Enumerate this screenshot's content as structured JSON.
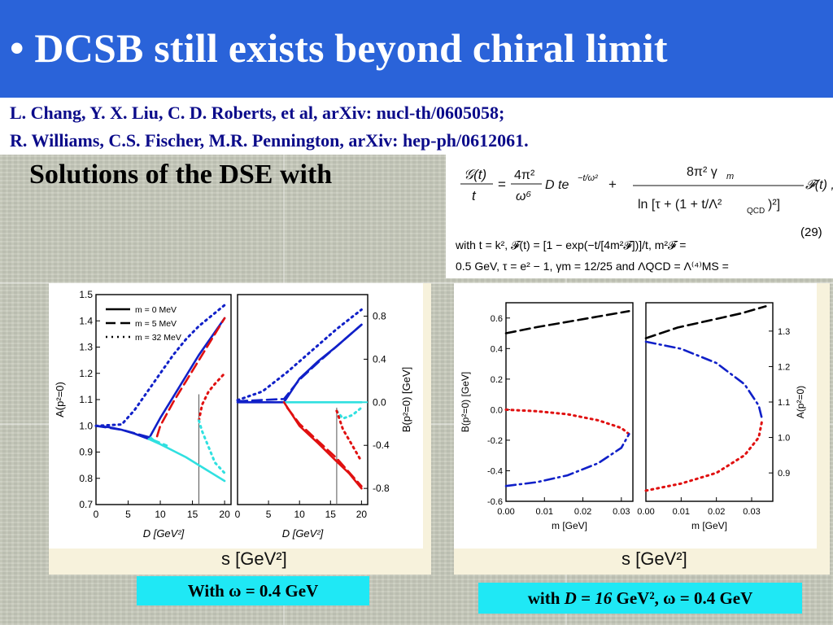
{
  "title": "• DCSB still exists beyond chiral limit",
  "references": [
    "L. Chang, Y. X. Liu, C. D. Roberts, et al,  arXiv: nucl-th/0605058;",
    "R. Williams, C.S. Fischer,  M.R. Pennington, arXiv: hep-ph/0612061."
  ],
  "subtitle": "Solutions of the DSE with",
  "formula": {
    "eq_number": "(29)",
    "line1": "with  t = k², 𝓕(t) = [1 − exp(−t/[4m²𝓕])]/t,  m²𝓕 =",
    "line2": "0.5 GeV, τ = e² − 1, γm = 12/25 and ΛQCD = Λ⁽⁴⁾MS ="
  },
  "left_panel": {
    "s_label": "s  [GeV²]",
    "caption": "With ω = 0.4 GeV"
  },
  "right_panel": {
    "s_label": "s  [GeV²]",
    "caption_prefix": "with ",
    "caption_D": "D = 16",
    "caption_suffix": " GeV², ω = 0.4 GeV"
  },
  "colors": {
    "title_bar": "#2a63d9",
    "ref_text": "#0b0b8a",
    "caption_bg": "#1fe8f5",
    "dark_blue": "#1020c8",
    "cyan": "#30e0e0",
    "red": "#e01010",
    "black": "#000000"
  },
  "chart_data": [
    {
      "type": "line",
      "id": "A_vs_D",
      "xlabel": "D [GeV²]",
      "ylabel": "A(p²=0)",
      "xlim": [
        0,
        21
      ],
      "ylim": [
        0.7,
        1.5
      ],
      "xticks": [
        0,
        5,
        10,
        15,
        20
      ],
      "yticks": [
        0.7,
        0.8,
        0.9,
        1.0,
        1.1,
        1.2,
        1.3,
        1.4,
        1.5
      ],
      "legend": {
        "placement": "top-left",
        "entries": [
          "m = 0 MeV",
          "m = 5 MeV",
          "m = 32 MeV"
        ]
      },
      "vline_x": 16,
      "series": [
        {
          "name": "m = 0 MeV",
          "color": "#1020c8",
          "style": "solid",
          "x": [
            0,
            2,
            4,
            6,
            8.2
          ],
          "y": [
            1.0,
            0.995,
            0.985,
            0.97,
            0.95
          ]
        },
        {
          "name": "m = 0 MeV",
          "color": "#1020c8",
          "style": "solid",
          "x": [
            8.2,
            10,
            12,
            14,
            16,
            18,
            20
          ],
          "y": [
            0.95,
            1.03,
            1.11,
            1.19,
            1.27,
            1.34,
            1.41
          ]
        },
        {
          "name": "m = 0 MeV",
          "color": "#30e0e0",
          "style": "solid",
          "x": [
            8.2,
            10,
            12,
            14,
            16,
            18,
            20
          ],
          "y": [
            0.95,
            0.93,
            0.905,
            0.88,
            0.85,
            0.82,
            0.79
          ]
        },
        {
          "name": "m = 5 MeV",
          "color": "#1020c8",
          "style": "dashed",
          "x": [
            0,
            4,
            8.5
          ],
          "y": [
            1.0,
            0.985,
            0.955
          ]
        },
        {
          "name": "m = 5 MeV",
          "color": "#e01010",
          "style": "dashed",
          "x": [
            9.5,
            10,
            12,
            14,
            16,
            18,
            20
          ],
          "y": [
            0.96,
            1.0,
            1.09,
            1.17,
            1.25,
            1.33,
            1.41
          ]
        },
        {
          "name": "m = 5 MeV",
          "color": "#30e0e0",
          "style": "dashed",
          "x": [
            8.5,
            9,
            10,
            11
          ],
          "y": [
            0.955,
            0.945,
            0.935,
            0.925
          ]
        },
        {
          "name": "m = 32 MeV",
          "color": "#1020c8",
          "style": "dotted",
          "x": [
            0,
            4,
            6,
            8,
            10,
            12,
            14,
            16,
            18,
            20
          ],
          "y": [
            1.0,
            1.005,
            1.06,
            1.13,
            1.2,
            1.27,
            1.33,
            1.38,
            1.42,
            1.46
          ]
        },
        {
          "name": "m = 32 MeV",
          "color": "#e01010",
          "style": "dotted",
          "x": [
            16,
            16.5,
            17.5,
            18.5,
            20
          ],
          "y": [
            1.02,
            1.08,
            1.13,
            1.16,
            1.2
          ]
        },
        {
          "name": "m = 32 MeV",
          "color": "#30e0e0",
          "style": "dotted",
          "x": [
            16,
            16.5,
            17.5,
            18.5,
            20
          ],
          "y": [
            1.02,
            0.98,
            0.92,
            0.86,
            0.82
          ]
        }
      ]
    },
    {
      "type": "line",
      "id": "B_vs_D",
      "xlabel": "D [GeV²]",
      "ylabel": "B(p²=0) [GeV]",
      "xlim": [
        0,
        21
      ],
      "ylim": [
        -0.95,
        1.0
      ],
      "xticks": [
        0,
        5,
        10,
        15,
        20
      ],
      "yticks": [
        -0.8,
        -0.4,
        0.0,
        0.4,
        0.8
      ],
      "vline_x": 16,
      "series": [
        {
          "name": "m = 0 MeV",
          "color": "#1020c8",
          "style": "solid",
          "x": [
            0,
            7.5
          ],
          "y": [
            0.0,
            0.0
          ]
        },
        {
          "name": "m = 0 MeV",
          "color": "#1020c8",
          "style": "solid",
          "x": [
            7.5,
            10,
            13,
            16,
            20
          ],
          "y": [
            0.0,
            0.22,
            0.38,
            0.52,
            0.72
          ]
        },
        {
          "name": "m = 0 MeV",
          "color": "#30e0e0",
          "style": "solid",
          "x": [
            7.5,
            20
          ],
          "y": [
            0.0,
            0.0
          ]
        },
        {
          "name": "m = 0 MeV",
          "color": "#e01010",
          "style": "solid",
          "x": [
            7.5,
            10,
            13,
            16,
            18,
            20
          ],
          "y": [
            0.0,
            -0.22,
            -0.38,
            -0.55,
            -0.66,
            -0.8
          ]
        },
        {
          "name": "m = 5 MeV",
          "color": "#1020c8",
          "style": "dashed",
          "x": [
            0,
            7.5,
            10,
            13,
            16,
            20
          ],
          "y": [
            0.01,
            0.03,
            0.21,
            0.37,
            0.52,
            0.72
          ]
        },
        {
          "name": "m = 5 MeV",
          "color": "#e01010",
          "style": "dashed",
          "x": [
            8,
            10,
            13,
            16,
            20
          ],
          "y": [
            -0.05,
            -0.2,
            -0.36,
            -0.52,
            -0.78
          ]
        },
        {
          "name": "m = 32 MeV",
          "color": "#1020c8",
          "style": "dotted",
          "x": [
            0,
            4,
            8,
            12,
            16,
            20
          ],
          "y": [
            0.02,
            0.1,
            0.28,
            0.48,
            0.68,
            0.86
          ]
        },
        {
          "name": "m = 32 MeV",
          "color": "#30e0e0",
          "style": "dotted",
          "x": [
            16,
            17,
            18.5,
            20
          ],
          "y": [
            -0.08,
            -0.15,
            -0.12,
            -0.05
          ]
        },
        {
          "name": "m = 32 MeV",
          "color": "#e01010",
          "style": "dotted",
          "x": [
            16,
            17,
            18.5,
            20
          ],
          "y": [
            -0.08,
            -0.25,
            -0.4,
            -0.55
          ]
        }
      ]
    },
    {
      "type": "line",
      "id": "B_vs_m",
      "xlabel": "m [GeV]",
      "ylabel": "B(p²=0) [GeV]",
      "xlim": [
        0.0,
        0.033
      ],
      "ylim": [
        -0.6,
        0.7
      ],
      "xticks": [
        0.0,
        0.01,
        0.02,
        0.03
      ],
      "xtick_labels": [
        "0.00",
        "0.01",
        "0.02",
        "0.03"
      ],
      "yticks": [
        -0.6,
        -0.4,
        -0.2,
        0.0,
        0.2,
        0.4,
        0.6
      ],
      "series": [
        {
          "color": "#000000",
          "style": "dashed",
          "x": [
            0.0,
            0.008,
            0.016,
            0.024,
            0.032
          ],
          "y": [
            0.5,
            0.54,
            0.575,
            0.61,
            0.645
          ]
        },
        {
          "color": "#e01010",
          "style": "dotted",
          "x": [
            0.0,
            0.008,
            0.016,
            0.024,
            0.03,
            0.032
          ],
          "y": [
            0.0,
            -0.01,
            -0.03,
            -0.07,
            -0.12,
            -0.16
          ]
        },
        {
          "color": "#1020c8",
          "style": "dashdot",
          "x": [
            0.0,
            0.008,
            0.016,
            0.024,
            0.03,
            0.032
          ],
          "y": [
            -0.5,
            -0.475,
            -0.43,
            -0.35,
            -0.25,
            -0.16
          ]
        }
      ]
    },
    {
      "type": "line",
      "id": "A_vs_m",
      "xlabel": "m [GeV]",
      "ylabel": "A(p²=0)",
      "xlim": [
        0.0,
        0.036
      ],
      "ylim": [
        0.82,
        1.38
      ],
      "xticks": [
        0.0,
        0.01,
        0.02,
        0.03
      ],
      "xtick_labels": [
        "0.00",
        "0.01",
        "0.02",
        "0.03"
      ],
      "yticks": [
        0.9,
        1.0,
        1.1,
        1.2,
        1.3
      ],
      "series": [
        {
          "color": "#000000",
          "style": "dashed",
          "x": [
            0.0,
            0.009,
            0.018,
            0.027,
            0.034
          ],
          "y": [
            1.28,
            1.31,
            1.33,
            1.35,
            1.37
          ]
        },
        {
          "color": "#1020c8",
          "style": "dashdot",
          "x": [
            0.0,
            0.01,
            0.02,
            0.028,
            0.032,
            0.033
          ],
          "y": [
            1.27,
            1.25,
            1.21,
            1.15,
            1.09,
            1.05
          ]
        },
        {
          "color": "#e01010",
          "style": "dotted",
          "x": [
            0.0,
            0.01,
            0.02,
            0.028,
            0.032,
            0.033
          ],
          "y": [
            0.85,
            0.87,
            0.9,
            0.95,
            1.0,
            1.05
          ]
        }
      ]
    }
  ]
}
